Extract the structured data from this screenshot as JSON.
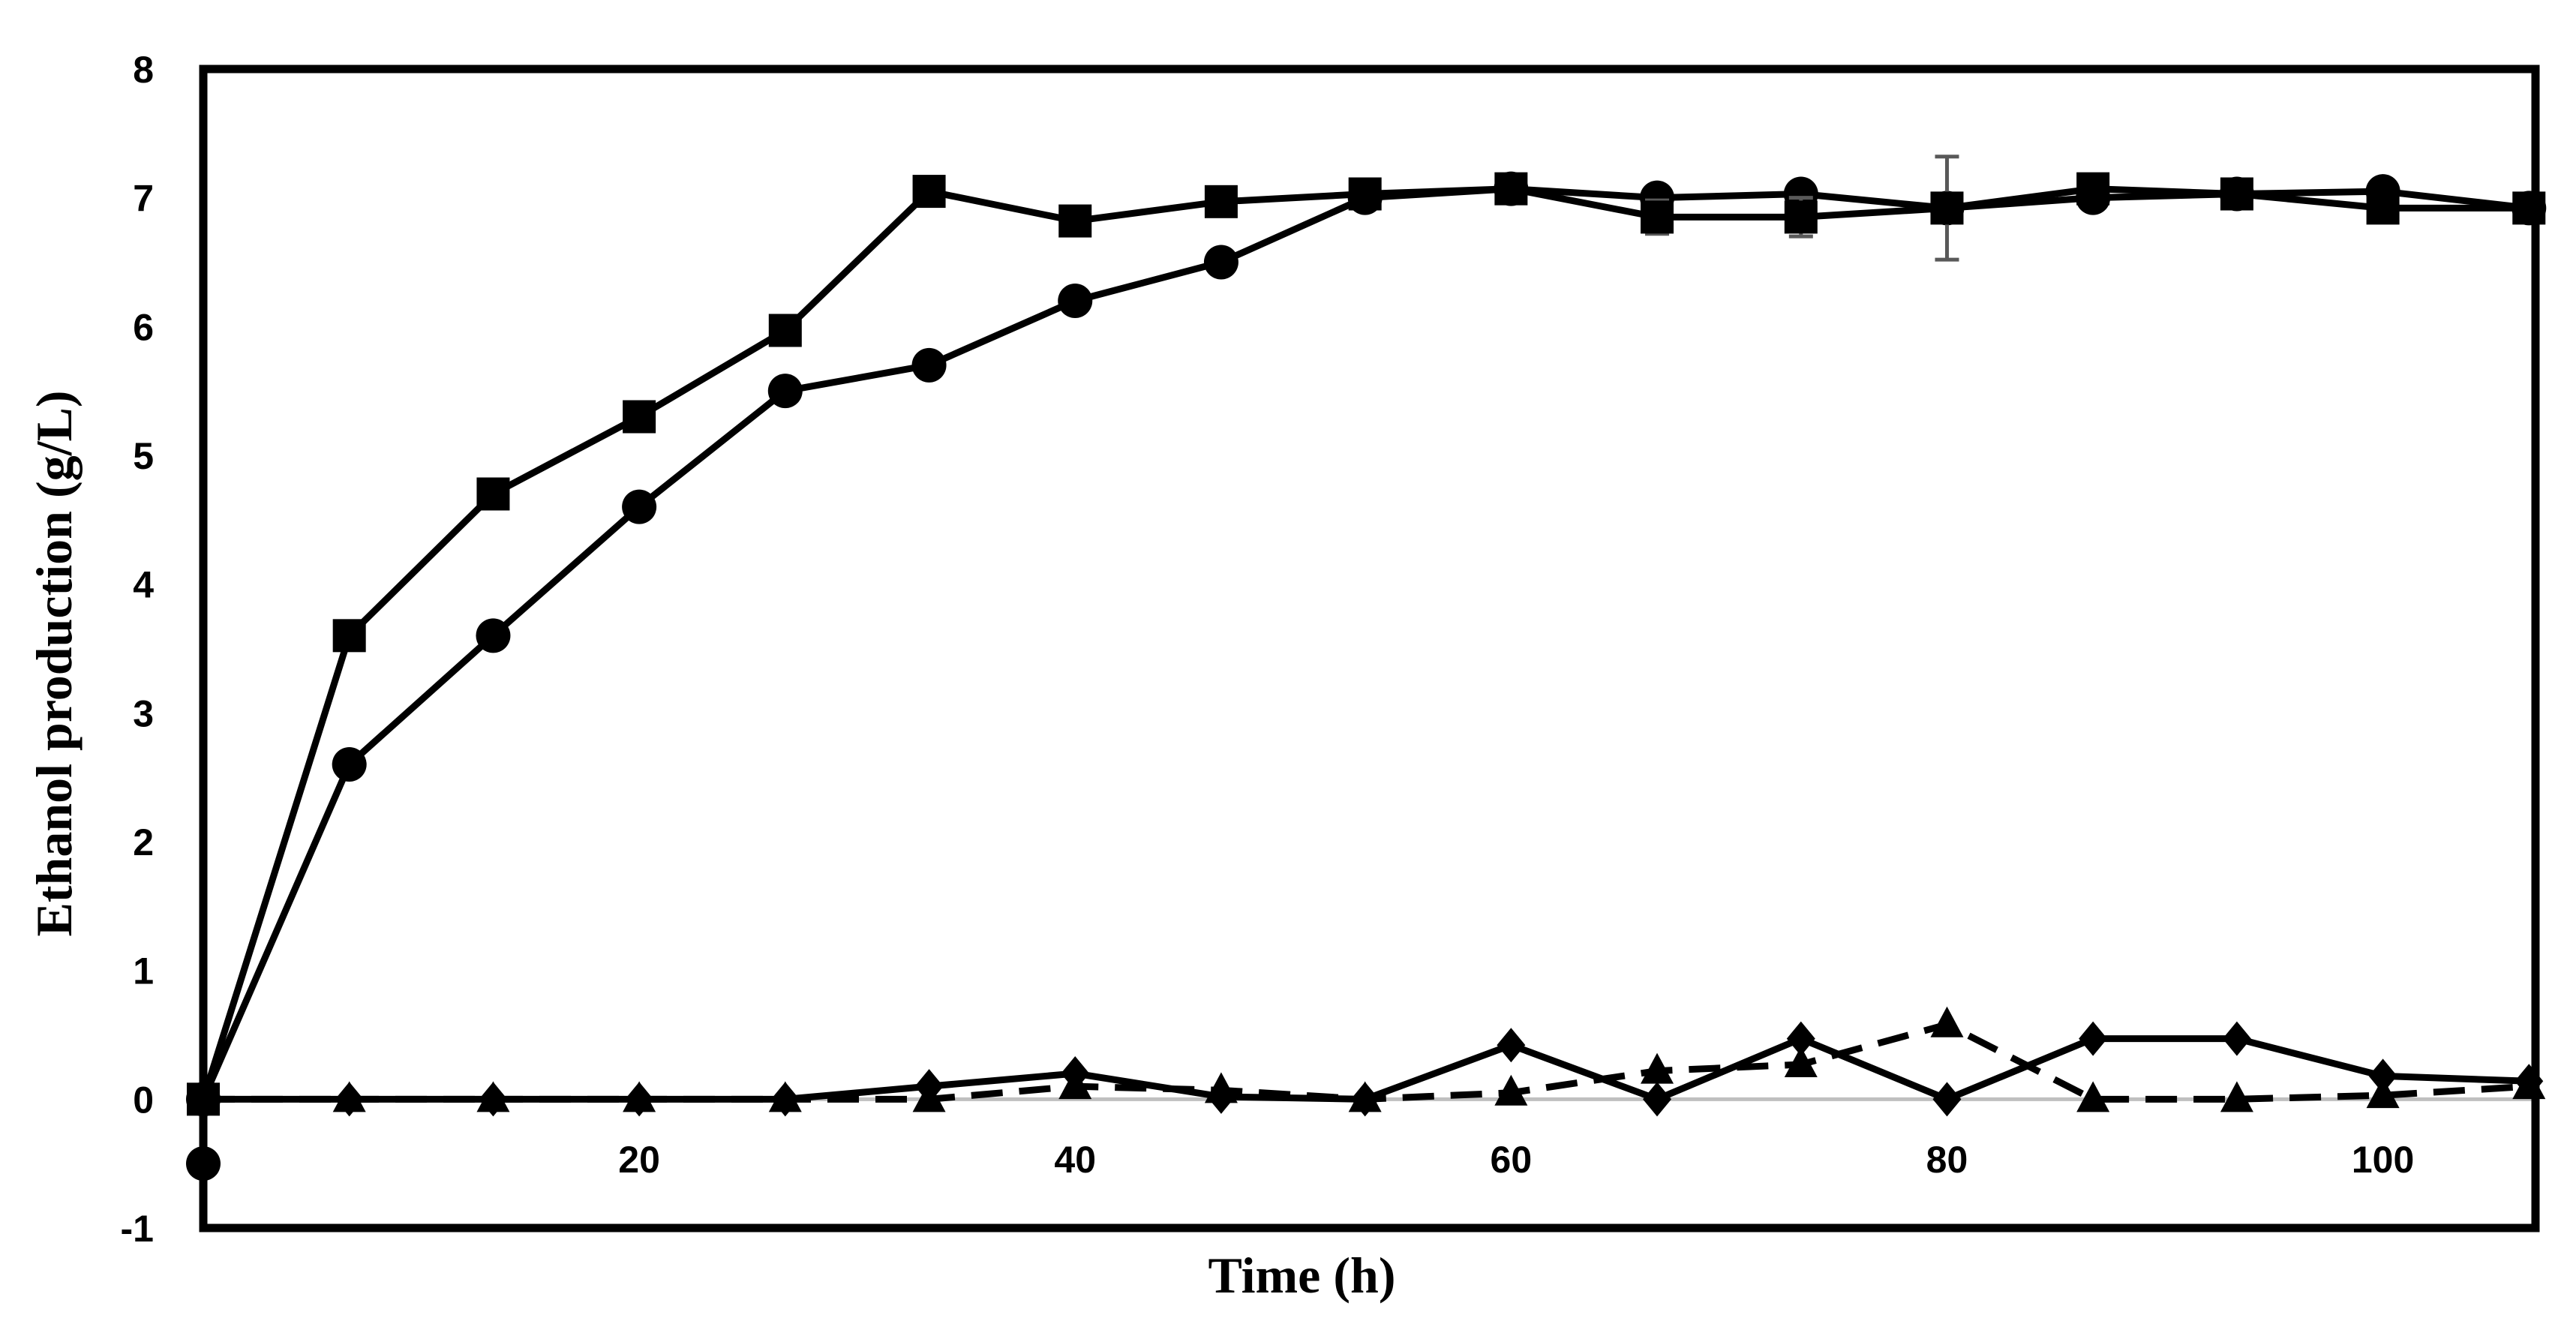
{
  "chart_data": {
    "type": "line",
    "title": "",
    "xlabel": "Time (h)",
    "ylabel": "Ethanol production (g/L)",
    "xlim": [
      0,
      107
    ],
    "ylim": [
      -1,
      8
    ],
    "x_ticks": [
      20,
      40,
      60,
      80,
      100
    ],
    "x_tick_labels": [
      "20",
      "40",
      "60",
      "80",
      "100"
    ],
    "y_ticks": [
      -1,
      0,
      1,
      2,
      3,
      4,
      5,
      6,
      7,
      8
    ],
    "y_tick_labels": [
      "-1",
      "0",
      "1",
      "2",
      "3",
      "4",
      "5",
      "6",
      "7",
      "8"
    ],
    "origin_label": "0",
    "reference_line_y": 0,
    "grid": false,
    "legend": "none",
    "x": [
      0,
      6.7,
      13.3,
      20,
      26.7,
      33.3,
      40,
      46.7,
      53.3,
      60,
      66.7,
      73.3,
      80,
      86.7,
      93.3,
      100,
      106.7
    ],
    "series": [
      {
        "name": "series-square",
        "marker": "square",
        "line": "solid",
        "values": [
          0,
          3.6,
          4.7,
          5.3,
          5.97,
          7.05,
          6.82,
          6.97,
          7.03,
          7.07,
          6.85,
          6.85,
          6.92,
          7.07,
          7.03,
          6.92,
          6.92
        ],
        "error": [
          0,
          0,
          0,
          0,
          0,
          0,
          0,
          0,
          0,
          0,
          0.13,
          0.15,
          0.4,
          0,
          0,
          0,
          0
        ]
      },
      {
        "name": "series-circle",
        "marker": "circle",
        "line": "solid",
        "values": [
          0,
          2.6,
          3.6,
          4.6,
          5.5,
          5.7,
          6.2,
          6.5,
          7.0,
          7.07,
          7.0,
          7.03,
          6.92,
          7.0,
          7.03,
          7.05,
          6.92
        ],
        "error": [
          0,
          0,
          0,
          0,
          0,
          0,
          0,
          0,
          0,
          0,
          0,
          0.08,
          0,
          0,
          0,
          0,
          0
        ]
      },
      {
        "name": "series-diamond",
        "marker": "diamond",
        "line": "solid",
        "values": [
          0,
          0,
          0,
          0,
          0,
          0.1,
          0.2,
          0.02,
          0,
          0.42,
          0,
          0.47,
          0,
          0.47,
          0.47,
          0.18,
          0.14
        ],
        "error": [
          0,
          0,
          0,
          0,
          0,
          0,
          0,
          0,
          0,
          0,
          0,
          0,
          0,
          0,
          0,
          0,
          0
        ]
      },
      {
        "name": "series-triangle",
        "marker": "triangle",
        "line": "dashed",
        "values": [
          0,
          0,
          0,
          0,
          0,
          0,
          0.1,
          0.07,
          0,
          0.05,
          0.22,
          0.27,
          0.58,
          0,
          0,
          0.03,
          0.1
        ],
        "error": [
          0,
          0,
          0,
          0,
          0,
          0,
          0,
          0,
          0,
          0,
          0,
          0,
          0,
          0,
          0,
          0,
          0
        ]
      }
    ],
    "outlier_point": {
      "x": 0,
      "y": -0.5,
      "marker": "circle"
    },
    "colors": {
      "line": "#000000",
      "error_bar": "#595959",
      "zero_line": "#bfbfbf",
      "frame": "#000000"
    }
  }
}
